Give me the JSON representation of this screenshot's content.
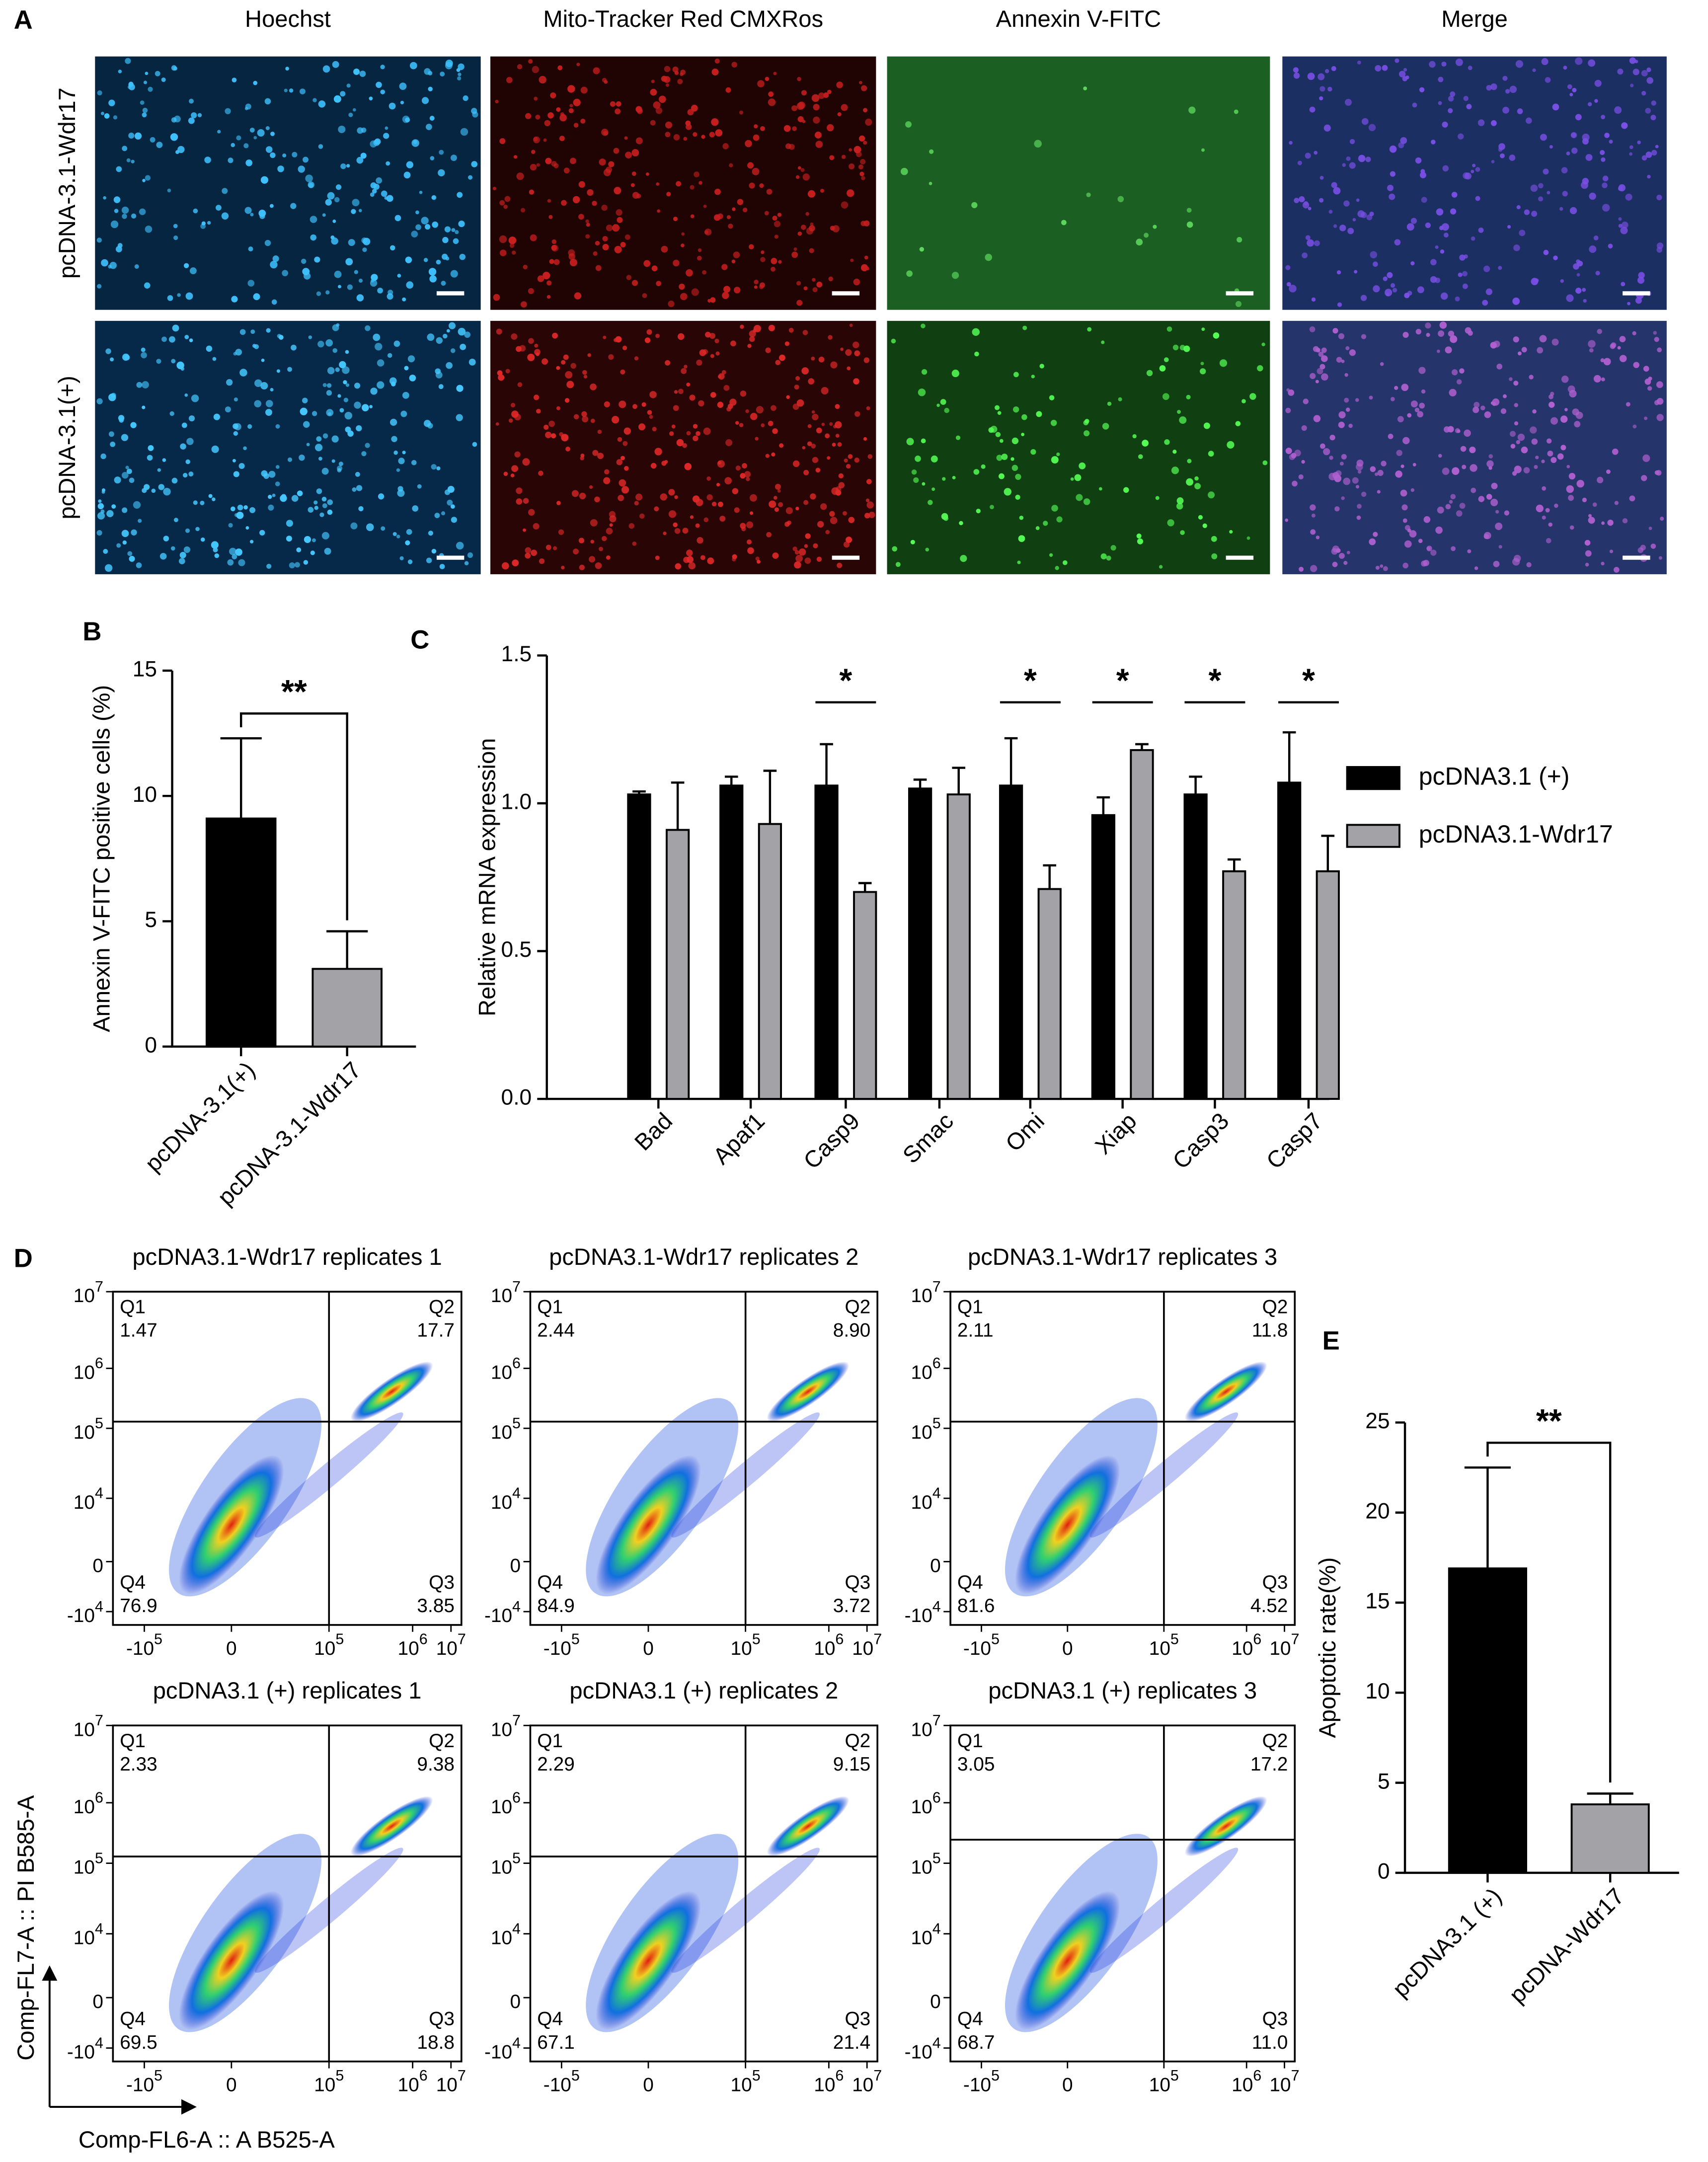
{
  "panel_a": {
    "label": "A",
    "columns": [
      "Hoechst",
      "Mito-Tracker Red CMXRos",
      "Annexin V-FITC",
      "Merge"
    ],
    "rows": [
      "pcDNA-3.1-Wdr17",
      "pcDNA-3.1(+)"
    ]
  },
  "chart_data": [
    {
      "type": "bar",
      "label": "B",
      "y_label": "Annexin V-FITC positive cells (%)",
      "categories": [
        "pcDNA-3.1(+)",
        "pcDNA-3.1-Wdr17"
      ],
      "values": [
        9.1,
        3.1
      ],
      "errors": [
        3.2,
        1.5
      ],
      "colors": [
        "#000000",
        "#a3a3a7"
      ],
      "ylim": [
        0,
        15
      ],
      "yticks": [
        0,
        5,
        10,
        15
      ],
      "annotation": "**"
    },
    {
      "type": "grouped_bar",
      "label": "C",
      "y_label": "Relative mRNA expression",
      "categories": [
        "Bad",
        "Apaf1",
        "Casp9",
        "Smac",
        "Omi",
        "Xiap",
        "Casp3",
        "Casp7"
      ],
      "series": [
        {
          "name": "pcDNA3.1 (+)",
          "color": "#000000",
          "values": [
            1.03,
            1.06,
            1.06,
            1.05,
            1.06,
            0.96,
            1.03,
            1.07
          ],
          "errors": [
            0.01,
            0.03,
            0.14,
            0.03,
            0.16,
            0.06,
            0.06,
            0.17
          ]
        },
        {
          "name": "pcDNA3.1-Wdr17",
          "color": "#a3a3a7",
          "values": [
            0.91,
            0.93,
            0.7,
            1.03,
            0.71,
            1.18,
            0.77,
            0.77
          ],
          "errors": [
            0.16,
            0.18,
            0.03,
            0.09,
            0.08,
            0.02,
            0.04,
            0.12
          ]
        }
      ],
      "ylim": [
        0,
        1.5
      ],
      "yticks": [
        {
          "value": 0,
          "label": "0.0"
        },
        {
          "value": 0.5,
          "label": "0.5"
        },
        {
          "value": 1,
          "label": "1.0"
        },
        {
          "value": 1.5,
          "label": "1.5"
        }
      ],
      "annotations": [
        null,
        null,
        "*",
        null,
        "*",
        "*",
        "*",
        "*"
      ]
    },
    {
      "type": "bar",
      "label": "E",
      "y_label": "Apoptotic rate(%)",
      "categories": [
        "pcDNA3.1 (+)",
        "pcDNA-Wdr17"
      ],
      "values": [
        16.9,
        3.8
      ],
      "errors": [
        5.6,
        0.6
      ],
      "colors": [
        "#000000",
        "#a3a3a7"
      ],
      "ylim": [
        0,
        25
      ],
      "yticks": [
        0,
        5,
        10,
        15,
        20,
        25
      ],
      "annotation": "**"
    }
  ],
  "panel_d": {
    "label": "D",
    "x_label": "Comp-FL6-A :: A B525-A",
    "y_label": "Comp-FL7-A :: PI B585-A",
    "xticks": [
      {
        "base": "-10",
        "exp": "5"
      },
      {
        "base": "0",
        "exp": null
      },
      {
        "base": "10",
        "exp": "5"
      },
      {
        "base": "10",
        "exp": "6"
      },
      {
        "base": "10",
        "exp": "7"
      }
    ],
    "yticks": [
      {
        "base": "10",
        "exp": "7"
      },
      {
        "base": "10",
        "exp": "6"
      },
      {
        "base": "10",
        "exp": "5"
      },
      {
        "base": "10",
        "exp": "4"
      },
      {
        "base": "0",
        "exp": null
      },
      {
        "base": "-10",
        "exp": "4"
      }
    ],
    "plots": [
      {
        "title": "pcDNA3.1-Wdr17 replicates 1",
        "quadrants": [
          [
            "Q1",
            "1.47"
          ],
          [
            "Q2",
            "17.7"
          ],
          [
            "Q4",
            "76.9"
          ],
          [
            "Q3",
            "3.85"
          ]
        ]
      },
      {
        "title": "pcDNA3.1-Wdr17 replicates 2",
        "quadrants": [
          [
            "Q1",
            "2.44"
          ],
          [
            "Q2",
            "8.90"
          ],
          [
            "Q4",
            "84.9"
          ],
          [
            "Q3",
            "3.72"
          ]
        ]
      },
      {
        "title": "pcDNA3.1-Wdr17 replicates 3",
        "quadrants": [
          [
            "Q1",
            "2.11"
          ],
          [
            "Q2",
            "11.8"
          ],
          [
            "Q4",
            "81.6"
          ],
          [
            "Q3",
            "4.52"
          ]
        ]
      },
      {
        "title": "pcDNA3.1 (+) replicates 1",
        "quadrants": [
          [
            "Q1",
            "2.33"
          ],
          [
            "Q2",
            "9.38"
          ],
          [
            "Q4",
            "69.5"
          ],
          [
            "Q3",
            "18.8"
          ]
        ]
      },
      {
        "title": "pcDNA3.1 (+) replicates 2",
        "quadrants": [
          [
            "Q1",
            "2.29"
          ],
          [
            "Q2",
            "9.15"
          ],
          [
            "Q4",
            "67.1"
          ],
          [
            "Q3",
            "21.4"
          ]
        ]
      },
      {
        "title": "pcDNA3.1 (+) replicates 3",
        "quadrants": [
          [
            "Q1",
            "3.05"
          ],
          [
            "Q2",
            "17.2"
          ],
          [
            "Q4",
            "68.7"
          ],
          [
            "Q3",
            "11.0"
          ]
        ]
      }
    ]
  }
}
